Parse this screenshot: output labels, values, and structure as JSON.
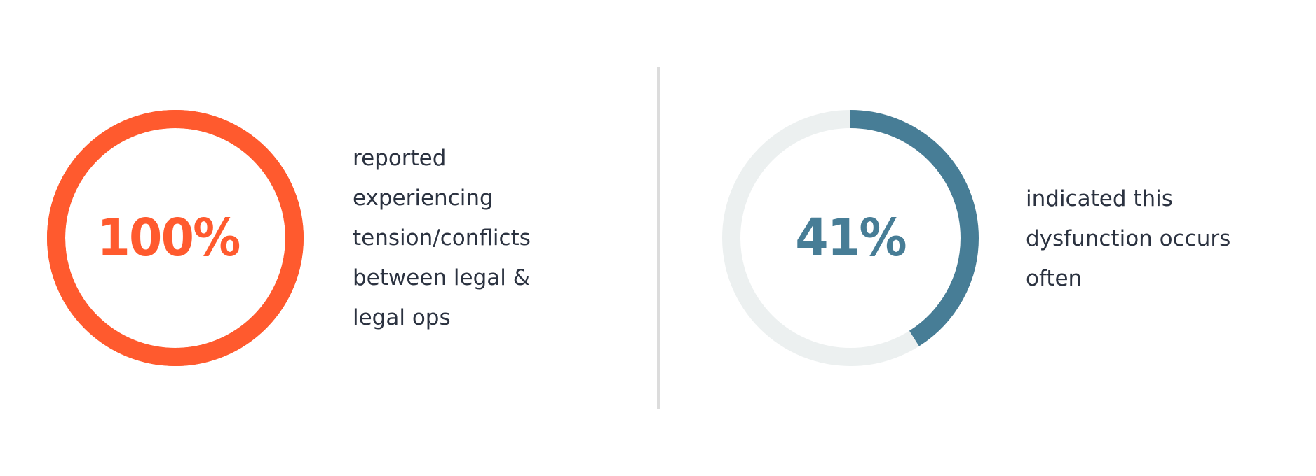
{
  "stats": [
    {
      "value": "100%",
      "fraction": 1.0,
      "color": "#ff5a2e",
      "track_color": "#ff5a2e",
      "description": "reported\nexperiencing\ntension/conflicts\nbetween legal &\nlegal ops"
    },
    {
      "value": "41%",
      "fraction": 0.41,
      "color": "#477d96",
      "track_color": "#ecf0f0",
      "description": "indicated this\ndysfunction occurs\noften"
    }
  ],
  "colors": {
    "text": "#2b3240",
    "divider": "#dcdcdc"
  }
}
